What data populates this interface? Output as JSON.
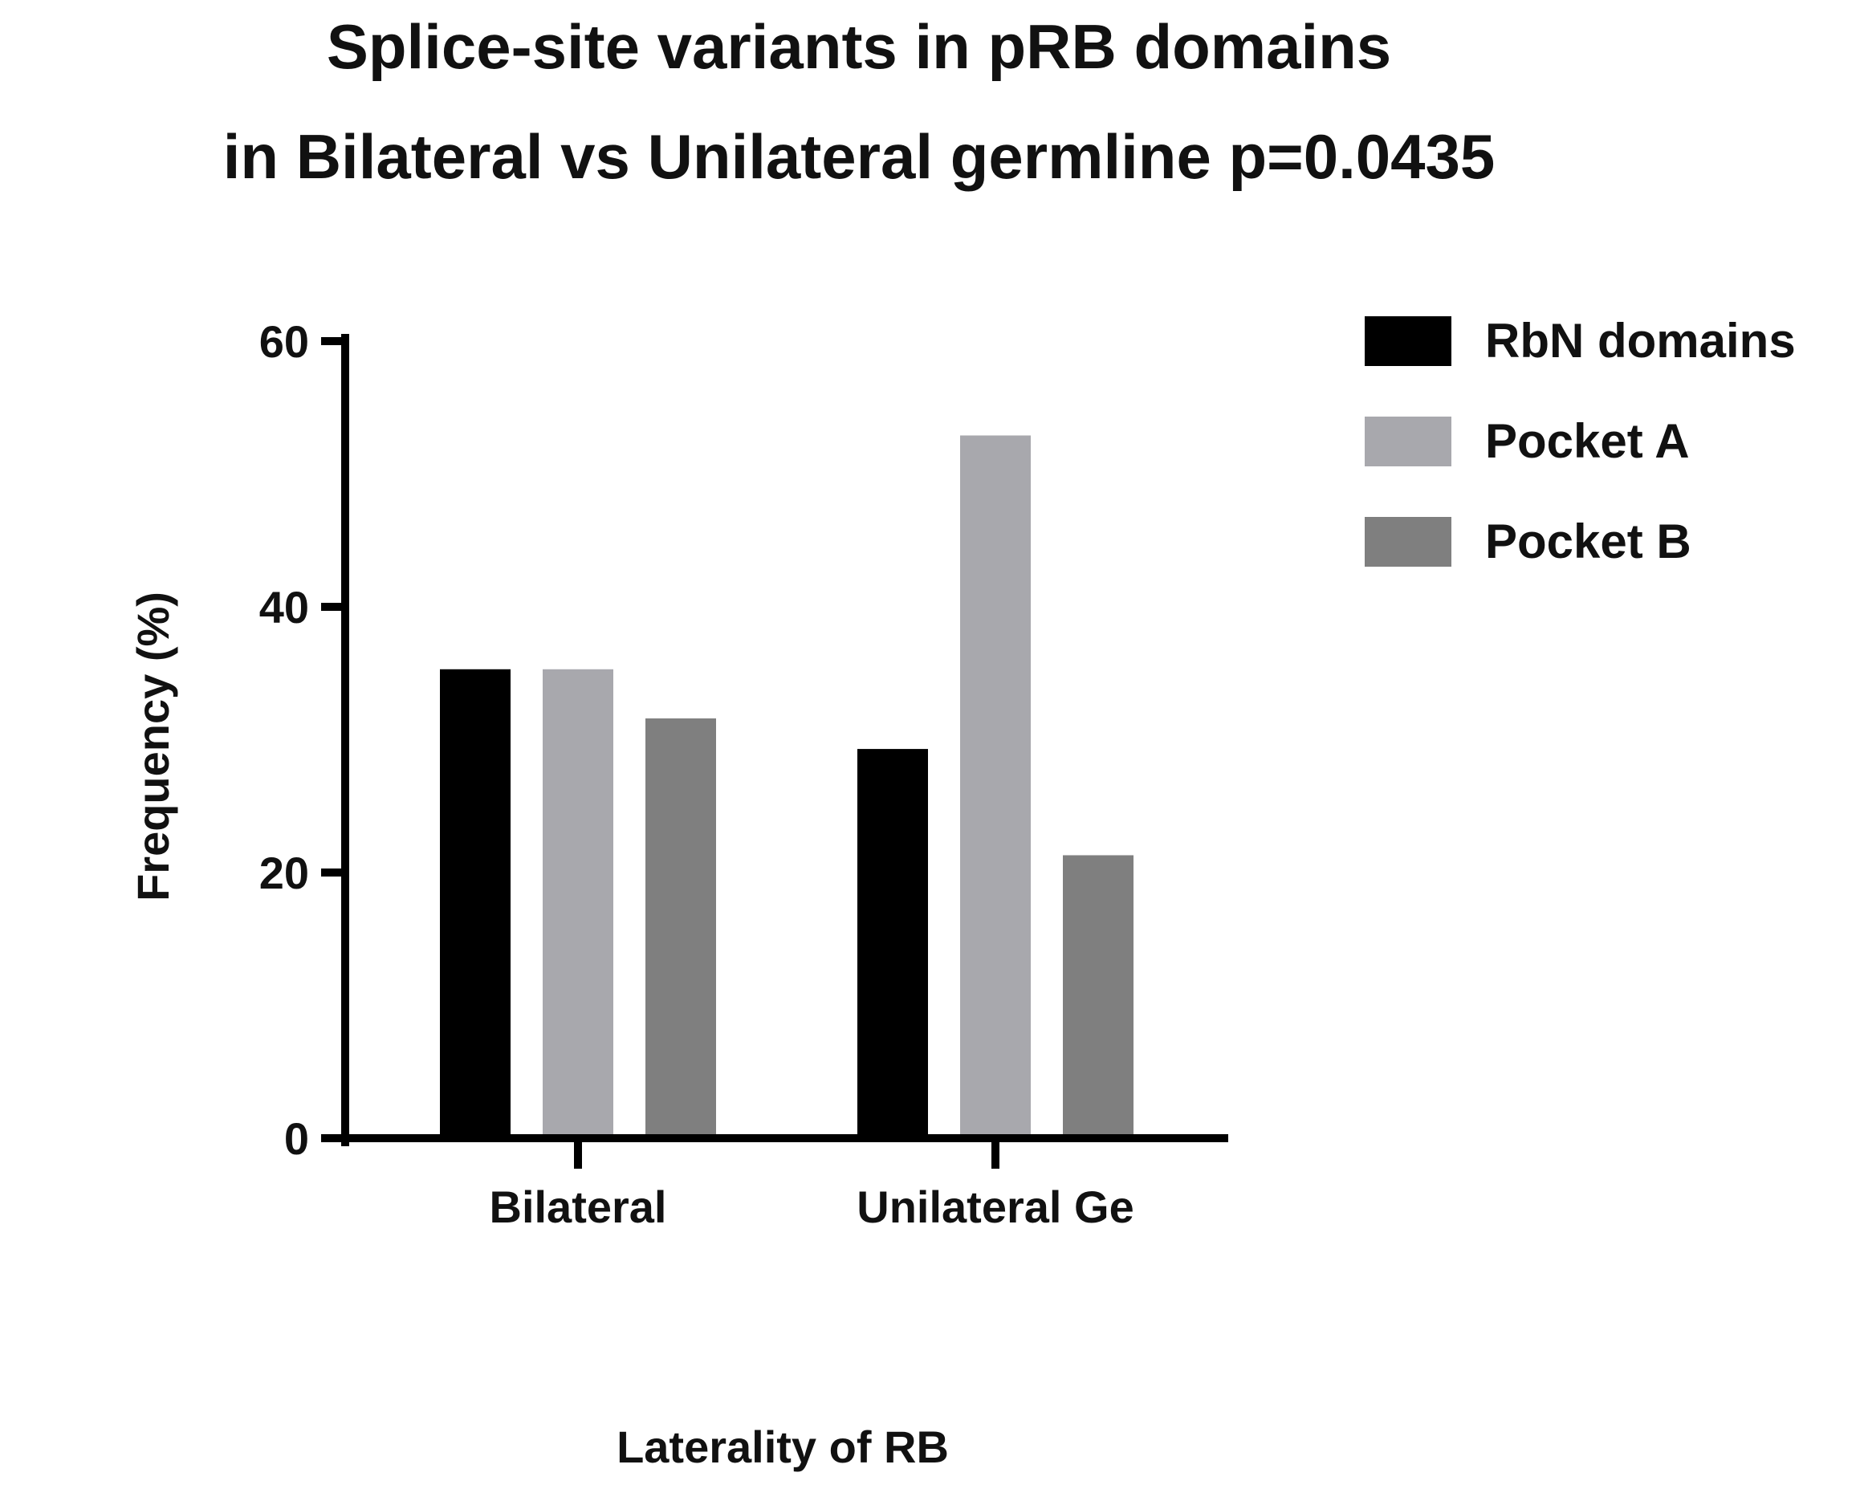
{
  "chart_data": {
    "type": "bar",
    "title_lines": [
      "Splice-site variants in pRB domains",
      "in Bilateral vs Unilateral germline p=0.0435"
    ],
    "xlabel": "Laterality of RB",
    "ylabel": "Frequency (%)",
    "categories": [
      "Bilateral",
      "Unilateral Ge"
    ],
    "series": [
      {
        "name": "RbN domains",
        "values": [
          35.3,
          29.3
        ],
        "color": "#000000"
      },
      {
        "name": "Pocket A",
        "values": [
          35.3,
          52.9
        ],
        "color": "#a8a8ad"
      },
      {
        "name": "Pocket B",
        "values": [
          31.6,
          21.3
        ],
        "color": "#7f7f7f"
      }
    ],
    "ylim": [
      0,
      60
    ],
    "yticks": [
      "0",
      "20",
      "40",
      "60"
    ],
    "grid": false,
    "legend_position": "top-right"
  }
}
